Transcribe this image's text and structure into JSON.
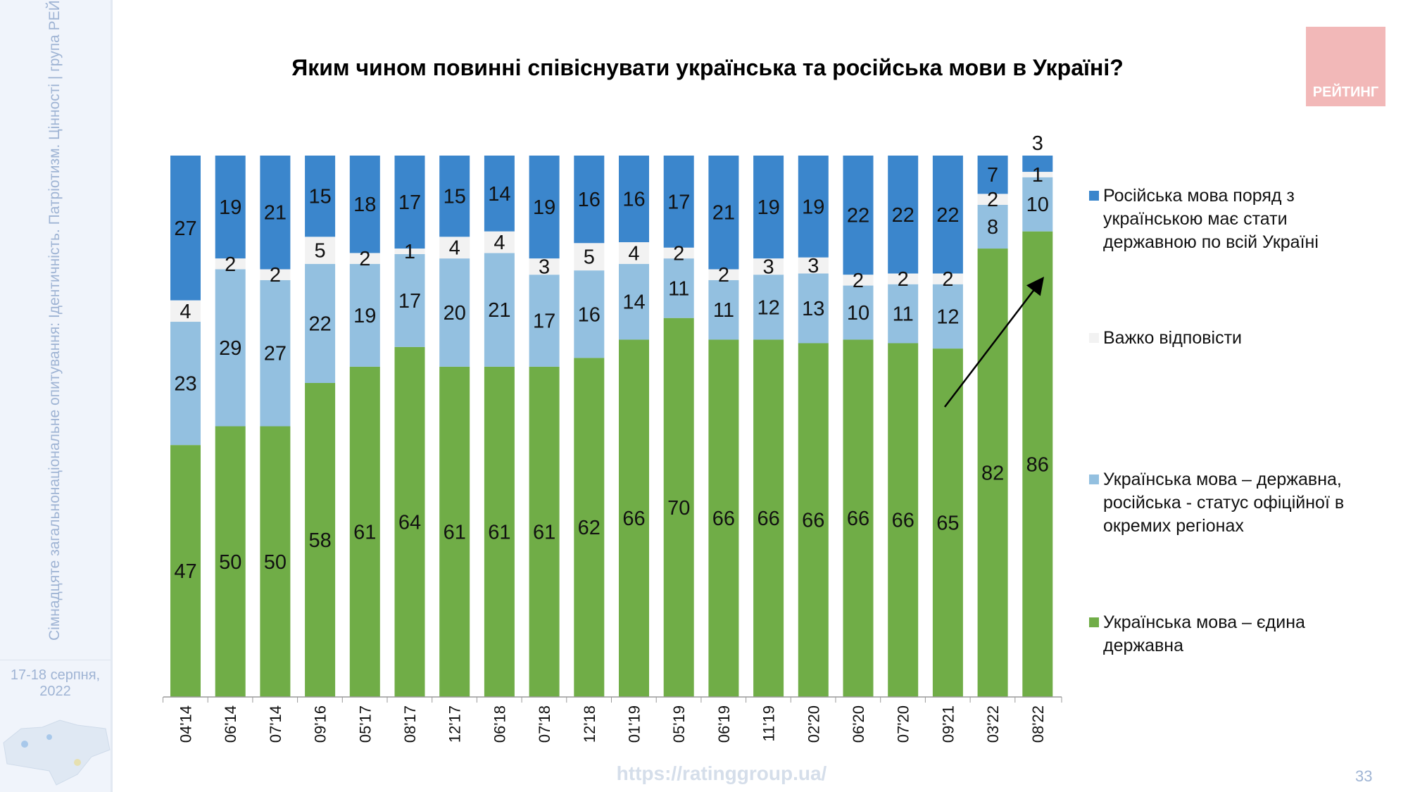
{
  "sidebar": {
    "vertical_text": "Сімнадцяте загальнонаціональне опитування: Ідентичність. Патріотизм. Цінності | група РЕЙТИНГ",
    "date": "17-18 серпня, 2022"
  },
  "logo_text": "РЕЙТИНГ",
  "footer": {
    "url": "https://ratinggroup.ua/",
    "page_number": "33"
  },
  "colors": {
    "russian_state": "#3b86cc",
    "hard_to_say": "#f2f2f2",
    "official_regions": "#93c0e0",
    "ukrainian_only": "#70ad47"
  },
  "chart_data": {
    "type": "bar",
    "stacked": true,
    "title": "Яким чином повинні співіснувати українська та російська мови в Україні?",
    "legend_position": "right",
    "grid": false,
    "categories": [
      "04'14",
      "06'14",
      "07'14",
      "09'16",
      "05'17",
      "08'17",
      "12'17",
      "06'18",
      "07'18",
      "12'18",
      "01'19",
      "05'19",
      "06'19",
      "11'19",
      "02'20",
      "06'20",
      "07'20",
      "09'21",
      "03'22",
      "08'22"
    ],
    "series": [
      {
        "name": "Українська мова – єдина державна",
        "color": "#70ad47",
        "values": [
          47,
          50,
          50,
          58,
          61,
          64,
          61,
          61,
          61,
          62,
          66,
          70,
          66,
          66,
          66,
          66,
          66,
          65,
          82,
          86
        ]
      },
      {
        "name": "Українська мова – державна, російська - статус офіційної в окремих регіонах",
        "color": "#93c0e0",
        "values": [
          23,
          29,
          27,
          22,
          19,
          17,
          20,
          21,
          17,
          16,
          14,
          11,
          11,
          12,
          13,
          10,
          11,
          12,
          8,
          10
        ]
      },
      {
        "name": "Важко відповісти",
        "color": "#f2f2f2",
        "values": [
          4,
          2,
          2,
          5,
          2,
          1,
          4,
          4,
          3,
          5,
          4,
          2,
          2,
          3,
          3,
          2,
          2,
          2,
          2,
          1
        ]
      },
      {
        "name": "Російська мова поряд з українською має стати державною по всій Україні",
        "color": "#3b86cc",
        "values": [
          27,
          19,
          21,
          15,
          18,
          17,
          15,
          14,
          19,
          16,
          16,
          17,
          21,
          19,
          19,
          22,
          22,
          22,
          7,
          3
        ]
      }
    ],
    "annotation": "arrow pointing up from 09'21 to 08'22"
  }
}
